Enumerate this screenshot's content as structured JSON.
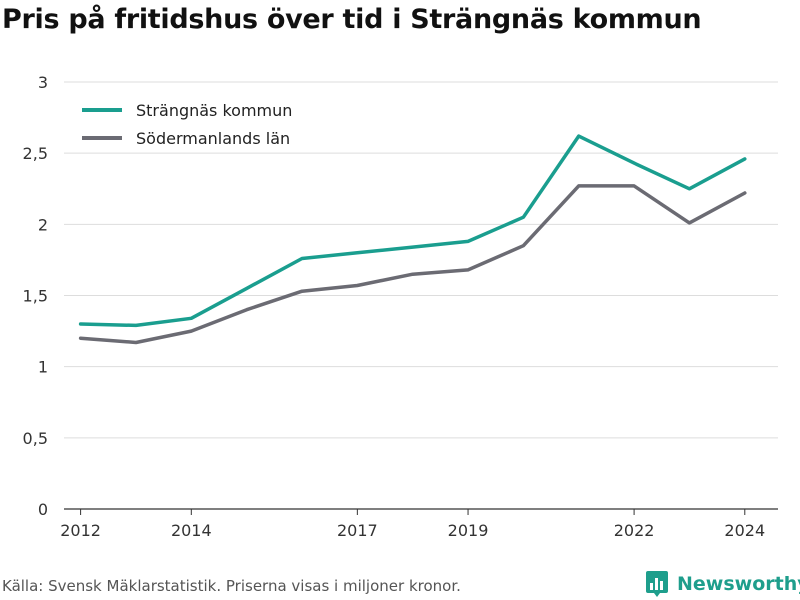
{
  "title": "Pris på fritidshus över tid i Strängnäs kommun",
  "source": "Källa: Svensk Mäklarstatistik. Priserna visas i miljoner kronor.",
  "brand": {
    "name": "Newsworthy",
    "icon": "bar-chart-logo-icon",
    "color": "#1e9e8c"
  },
  "chart_data": {
    "type": "line",
    "title": "Pris på fritidshus över tid i Strängnäs kommun",
    "xlabel": "",
    "ylabel": "",
    "xlim": [
      2011.7,
      2024.6
    ],
    "ylim": [
      0,
      3
    ],
    "y_ticks": [
      0,
      0.5,
      1,
      1.5,
      2,
      2.5,
      3
    ],
    "y_tick_labels": [
      "0",
      "0,5",
      "1",
      "1,5",
      "2",
      "2,5",
      "3"
    ],
    "x_ticks": [
      2012,
      2014,
      2017,
      2019,
      2022,
      2024
    ],
    "x_tick_labels": [
      "2012",
      "2014",
      "2017",
      "2019",
      "2022",
      "2024"
    ],
    "grid": true,
    "legend_position": "top-left",
    "x": [
      2012,
      2013,
      2014,
      2015,
      2016,
      2017,
      2018,
      2019,
      2020,
      2021,
      2022,
      2023,
      2024
    ],
    "series": [
      {
        "name": "Strängnäs kommun",
        "color": "#1a9e8f",
        "values": [
          1.3,
          1.29,
          1.34,
          1.55,
          1.76,
          1.8,
          1.84,
          1.88,
          2.05,
          2.62,
          2.43,
          2.25,
          2.46
        ]
      },
      {
        "name": "Södermanlands län",
        "color": "#6b6b73",
        "values": [
          1.2,
          1.17,
          1.25,
          1.4,
          1.53,
          1.57,
          1.65,
          1.68,
          1.85,
          2.27,
          2.27,
          2.01,
          2.22
        ]
      }
    ]
  }
}
